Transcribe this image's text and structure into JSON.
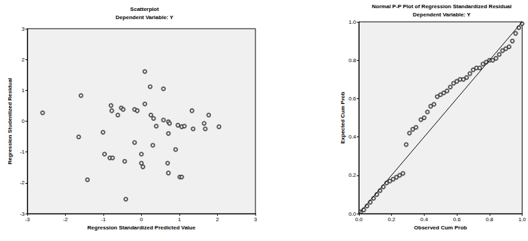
{
  "chart_data": [
    {
      "type": "scatter",
      "title": "Scatterplot",
      "subtitle": "Dependent Variable: Y",
      "x_label": "Regression Standardized Predicted Value",
      "y_label": "Regression Studentized Residual",
      "x": [
        -2.6,
        -1.59,
        -1.65,
        -1.42,
        -1.01,
        -0.8,
        -0.78,
        -0.97,
        -0.83,
        -0.76,
        -0.62,
        -0.53,
        -0.48,
        -0.44,
        -0.41,
        -0.18,
        -0.18,
        -0.11,
        0.0,
        0.0,
        0.04,
        0.09,
        0.09,
        0.23,
        0.25,
        0.3,
        0.32,
        0.39,
        0.58,
        0.58,
        0.71,
        0.74,
        0.69,
        0.71,
        0.71,
        0.9,
        0.96,
        1.01,
        1.06,
        1.06,
        1.13,
        1.33,
        1.36,
        1.65,
        1.68,
        1.77,
        2.04
      ],
      "values": [
        0.27,
        0.83,
        -0.51,
        -1.9,
        -0.36,
        0.51,
        0.34,
        -1.07,
        -1.19,
        -1.19,
        0.2,
        0.43,
        0.38,
        -1.3,
        -2.53,
        -0.69,
        0.38,
        0.34,
        -1.07,
        -1.36,
        -1.48,
        1.61,
        0.56,
        1.12,
        0.2,
        -0.78,
        0.09,
        -0.16,
        1.05,
        0.04,
        -0.02,
        -0.07,
        -1.36,
        -1.68,
        -0.4,
        -0.92,
        -0.13,
        -1.81,
        -1.81,
        -0.18,
        -0.16,
        0.34,
        -0.25,
        -0.07,
        -0.25,
        0.2,
        -0.18
      ],
      "color": "#333333",
      "marker": "circle-open",
      "xlim": [
        -3,
        3
      ],
      "xticks": [
        -3,
        -2,
        -1,
        0,
        1,
        2,
        3
      ],
      "ylim": [
        -3,
        3
      ],
      "yticks": [
        -3,
        -2,
        -1,
        0,
        1,
        2,
        3
      ],
      "grid": false
    },
    {
      "type": "scatter",
      "title": "Normal P-P Plot of Regression Standardized Residual",
      "subtitle": "Dependent Variable: Y",
      "x_label": "Observed Cum Prob",
      "y_label": "Expected Cum Prob",
      "x": [
        0.01,
        0.03,
        0.05,
        0.07,
        0.09,
        0.11,
        0.13,
        0.15,
        0.17,
        0.19,
        0.21,
        0.23,
        0.25,
        0.27,
        0.29,
        0.31,
        0.33,
        0.35,
        0.38,
        0.4,
        0.42,
        0.44,
        0.46,
        0.48,
        0.5,
        0.52,
        0.54,
        0.56,
        0.58,
        0.6,
        0.62,
        0.64,
        0.66,
        0.68,
        0.7,
        0.72,
        0.74,
        0.76,
        0.78,
        0.8,
        0.82,
        0.84,
        0.86,
        0.88,
        0.9,
        0.92,
        0.94,
        0.96,
        0.98,
        1.0
      ],
      "values": [
        0.01,
        0.02,
        0.04,
        0.06,
        0.08,
        0.1,
        0.12,
        0.14,
        0.16,
        0.17,
        0.18,
        0.19,
        0.2,
        0.21,
        0.36,
        0.42,
        0.44,
        0.45,
        0.49,
        0.5,
        0.53,
        0.56,
        0.57,
        0.61,
        0.62,
        0.63,
        0.64,
        0.66,
        0.68,
        0.69,
        0.7,
        0.7,
        0.71,
        0.73,
        0.75,
        0.76,
        0.76,
        0.78,
        0.79,
        0.8,
        0.8,
        0.81,
        0.83,
        0.85,
        0.86,
        0.87,
        0.9,
        0.94,
        0.97,
        0.99
      ],
      "color": "#333333",
      "marker": "circle-open",
      "reference_line": {
        "x": [
          0,
          1
        ],
        "values": [
          0,
          1
        ],
        "color": "#000000"
      },
      "xlim": [
        0,
        1
      ],
      "xticks": [
        {
          "value": 0,
          "label": "0.0"
        },
        0.2,
        0.4,
        0.6,
        0.8,
        {
          "value": 1,
          "label": "1.0"
        }
      ],
      "ylim": [
        0,
        1
      ],
      "yticks": [
        {
          "value": 0,
          "label": "0.0"
        },
        0.2,
        0.4,
        0.6,
        0.8,
        {
          "value": 1,
          "label": "1.0"
        }
      ],
      "grid": false
    }
  ]
}
